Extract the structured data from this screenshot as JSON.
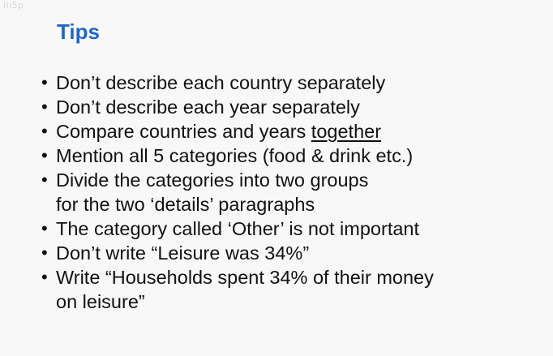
{
  "watermark": "ili5p",
  "title": "Tips",
  "tips": [
    {
      "lines": [
        "Don’t describe each country separately"
      ]
    },
    {
      "lines": [
        "Don’t describe each year separately"
      ]
    },
    {
      "prefix": "Compare countries and years ",
      "emphasis": "together"
    },
    {
      "lines": [
        "Mention all 5 categories (food & drink etc.)"
      ]
    },
    {
      "lines": [
        "Divide the categories into two groups",
        "for the two ‘details’ paragraphs"
      ]
    },
    {
      "lines": [
        "The category called ‘Other’ is not important"
      ]
    },
    {
      "lines": [
        "Don’t write “Leisure was 34%”"
      ]
    },
    {
      "lines": [
        "Write “Households spent 34% of their money",
        "on leisure”"
      ]
    }
  ],
  "bullet": "•"
}
